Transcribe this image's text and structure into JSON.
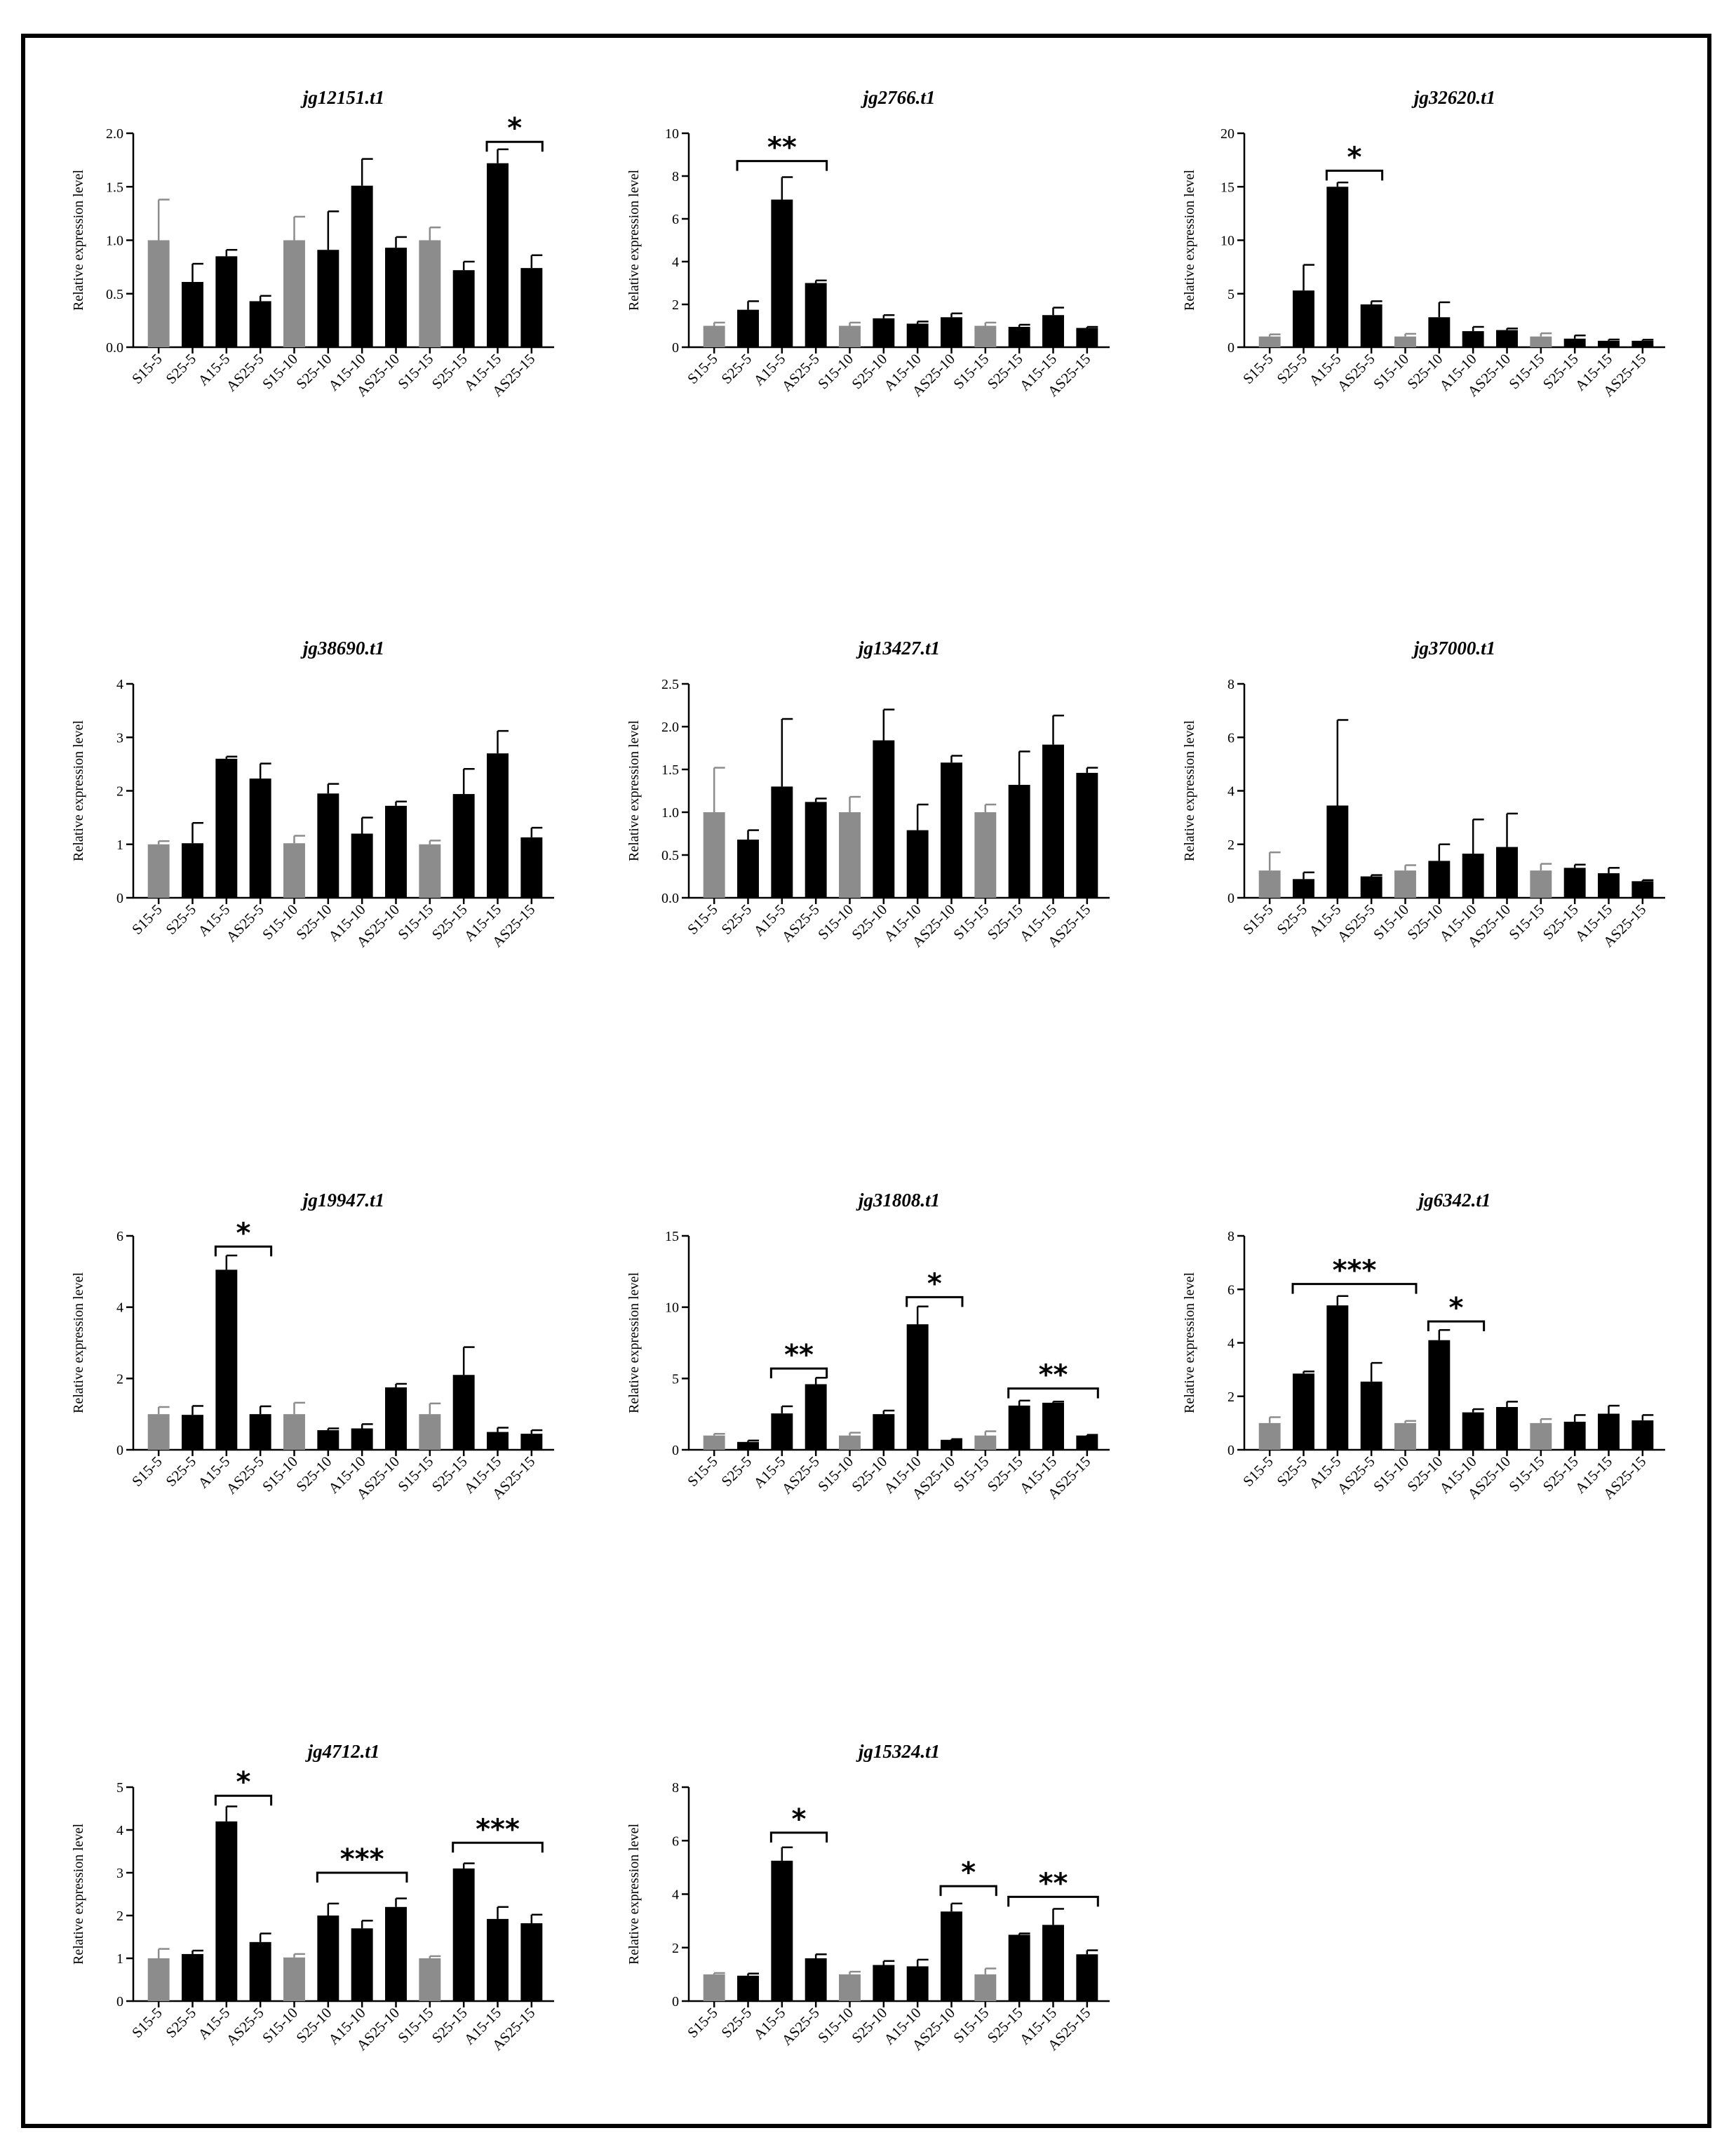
{
  "colors": {
    "control": "#8c8c8c",
    "treatment": "#000000",
    "frame": "#000000"
  },
  "chart_data": [
    {
      "type": "bar",
      "title": "jg12151.t1",
      "ylabel": "Relative expression level",
      "ylim": [
        0,
        2.0
      ],
      "yticks": [
        "0.0",
        "0.5",
        "1.0",
        "1.5",
        "2.0"
      ],
      "categories": [
        "S15-5",
        "S25-5",
        "A15-5",
        "AS25-5",
        "S15-10",
        "S25-10",
        "A15-10",
        "AS25-10",
        "S15-15",
        "S25-15",
        "A15-15",
        "AS25-15"
      ],
      "values": [
        1.0,
        0.61,
        0.85,
        0.43,
        1.0,
        0.91,
        1.51,
        0.93,
        1.0,
        0.72,
        1.72,
        0.74
      ],
      "errors": [
        0.38,
        0.17,
        0.06,
        0.05,
        0.22,
        0.36,
        0.25,
        0.1,
        0.12,
        0.08,
        0.13,
        0.12
      ],
      "control_indices": [
        0,
        4,
        8
      ],
      "annotations": [
        {
          "text": "*",
          "from": 10,
          "to": 11,
          "y": 1.92
        }
      ]
    },
    {
      "type": "bar",
      "title": "jg2766.t1",
      "ylabel": "Relative expression level",
      "ylim": [
        0,
        10
      ],
      "yticks": [
        "0",
        "2",
        "4",
        "6",
        "8",
        "10"
      ],
      "categories": [
        "S15-5",
        "S25-5",
        "A15-5",
        "AS25-5",
        "S15-10",
        "S25-10",
        "A15-10",
        "AS25-10",
        "S15-15",
        "S25-15",
        "A15-15",
        "AS25-15"
      ],
      "values": [
        1.0,
        1.75,
        6.9,
        3.0,
        1.0,
        1.35,
        1.1,
        1.4,
        1.0,
        0.95,
        1.5,
        0.9
      ],
      "errors": [
        0.15,
        0.4,
        1.05,
        0.12,
        0.15,
        0.15,
        0.1,
        0.18,
        0.15,
        0.1,
        0.35,
        0.05
      ],
      "control_indices": [
        0,
        4,
        8
      ],
      "annotations": [
        {
          "text": "**",
          "from": 1,
          "to": 3,
          "y": 8.7
        }
      ]
    },
    {
      "type": "bar",
      "title": "jg32620.t1",
      "ylabel": "Relative expression level",
      "ylim": [
        0,
        20
      ],
      "yticks": [
        "0",
        "5",
        "10",
        "15",
        "20"
      ],
      "categories": [
        "S15-5",
        "S25-5",
        "A15-5",
        "AS25-5",
        "S15-10",
        "S25-10",
        "A15-10",
        "AS25-10",
        "S15-15",
        "S25-15",
        "A15-15",
        "AS25-15"
      ],
      "values": [
        1.0,
        5.3,
        15.0,
        4.0,
        1.0,
        2.8,
        1.5,
        1.6,
        1.0,
        0.8,
        0.6,
        0.6
      ],
      "errors": [
        0.2,
        2.4,
        0.4,
        0.3,
        0.25,
        1.4,
        0.4,
        0.15,
        0.3,
        0.3,
        0.12,
        0.1
      ],
      "control_indices": [
        0,
        4,
        8
      ],
      "annotations": [
        {
          "text": "*",
          "from": 2,
          "to": 3,
          "y": 16.5
        }
      ]
    },
    {
      "type": "bar",
      "title": "jg38690.t1",
      "ylabel": "Relative expression level",
      "ylim": [
        0,
        4
      ],
      "yticks": [
        "0",
        "1",
        "2",
        "3",
        "4"
      ],
      "categories": [
        "S15-5",
        "S25-5",
        "A15-5",
        "AS25-5",
        "S15-10",
        "S25-10",
        "A15-10",
        "AS25-10",
        "S15-15",
        "S25-15",
        "A15-15",
        "AS25-15"
      ],
      "values": [
        1.0,
        1.02,
        2.6,
        2.23,
        1.02,
        1.95,
        1.2,
        1.72,
        1.0,
        1.94,
        2.7,
        1.13
      ],
      "errors": [
        0.06,
        0.38,
        0.04,
        0.28,
        0.14,
        0.18,
        0.3,
        0.08,
        0.07,
        0.47,
        0.42,
        0.18
      ],
      "control_indices": [
        0,
        4,
        8
      ],
      "annotations": []
    },
    {
      "type": "bar",
      "title": "jg13427.t1",
      "ylabel": "Relative expression level",
      "ylim": [
        0,
        2.5
      ],
      "yticks": [
        "0.0",
        "0.5",
        "1.0",
        "1.5",
        "2.0",
        "2.5"
      ],
      "categories": [
        "S15-5",
        "S25-5",
        "A15-5",
        "AS25-5",
        "S15-10",
        "S25-10",
        "A15-10",
        "AS25-10",
        "S15-15",
        "S25-15",
        "A15-15",
        "AS25-15"
      ],
      "values": [
        1.0,
        0.68,
        1.3,
        1.12,
        1.0,
        1.84,
        0.79,
        1.58,
        1.0,
        1.32,
        1.79,
        1.46
      ],
      "errors": [
        0.52,
        0.11,
        0.79,
        0.04,
        0.18,
        0.36,
        0.3,
        0.08,
        0.09,
        0.39,
        0.34,
        0.06
      ],
      "control_indices": [
        0,
        4,
        8
      ],
      "annotations": []
    },
    {
      "type": "bar",
      "title": "jg37000.t1",
      "ylabel": "Relative expression level",
      "ylim": [
        0,
        8
      ],
      "yticks": [
        "0",
        "2",
        "4",
        "6",
        "8"
      ],
      "categories": [
        "S15-5",
        "S25-5",
        "A15-5",
        "AS25-5",
        "S15-10",
        "S25-10",
        "A15-10",
        "AS25-10",
        "S15-15",
        "S25-15",
        "A15-15",
        "AS25-15"
      ],
      "values": [
        1.02,
        0.7,
        3.45,
        0.8,
        1.02,
        1.38,
        1.65,
        1.9,
        1.02,
        1.12,
        0.92,
        0.62
      ],
      "errors": [
        0.68,
        0.25,
        3.2,
        0.05,
        0.2,
        0.62,
        1.28,
        1.25,
        0.25,
        0.12,
        0.2,
        0.04
      ],
      "control_indices": [
        0,
        4,
        8
      ],
      "annotations": []
    },
    {
      "type": "bar",
      "title": "jg19947.t1",
      "ylabel": "Relative expression level",
      "ylim": [
        0,
        6
      ],
      "yticks": [
        "0",
        "2",
        "4",
        "6"
      ],
      "categories": [
        "S15-5",
        "S25-5",
        "A15-5",
        "AS25-5",
        "S15-10",
        "S25-10",
        "A15-10",
        "AS25-10",
        "S15-15",
        "S25-15",
        "A15-15",
        "AS25-15"
      ],
      "values": [
        1.0,
        0.98,
        5.05,
        1.0,
        1.0,
        0.55,
        0.6,
        1.75,
        1.0,
        2.1,
        0.5,
        0.45
      ],
      "errors": [
        0.2,
        0.25,
        0.4,
        0.22,
        0.32,
        0.05,
        0.12,
        0.1,
        0.3,
        0.78,
        0.12,
        0.1
      ],
      "control_indices": [
        0,
        4,
        8
      ],
      "annotations": [
        {
          "text": "*",
          "from": 2,
          "to": 3,
          "y": 5.7
        }
      ]
    },
    {
      "type": "bar",
      "title": "jg31808.t1",
      "ylabel": "Relative expression level",
      "ylim": [
        0,
        15
      ],
      "yticks": [
        "0",
        "5",
        "10",
        "15"
      ],
      "categories": [
        "S15-5",
        "S25-5",
        "A15-5",
        "AS25-5",
        "S15-10",
        "S25-10",
        "A15-10",
        "AS25-10",
        "S15-15",
        "S25-15",
        "A15-15",
        "AS25-15"
      ],
      "values": [
        1.0,
        0.55,
        2.55,
        4.6,
        1.0,
        2.5,
        8.8,
        0.7,
        1.0,
        3.1,
        3.3,
        1.0
      ],
      "errors": [
        0.12,
        0.1,
        0.5,
        0.45,
        0.2,
        0.25,
        1.25,
        0.05,
        0.3,
        0.35,
        0.08,
        0.05
      ],
      "control_indices": [
        0,
        4,
        8
      ],
      "annotations": [
        {
          "text": "**",
          "from": 2,
          "to": 3,
          "y": 5.7
        },
        {
          "text": "*",
          "from": 6,
          "to": 7,
          "y": 10.7
        },
        {
          "text": "**",
          "from": 9,
          "to": 11,
          "y": 4.3
        }
      ]
    },
    {
      "type": "bar",
      "title": "jg6342.t1",
      "ylabel": "Relative expression level",
      "ylim": [
        0,
        8
      ],
      "yticks": [
        "0",
        "2",
        "4",
        "6",
        "8"
      ],
      "categories": [
        "S15-5",
        "S25-5",
        "A15-5",
        "AS25-5",
        "S15-10",
        "S25-10",
        "A15-10",
        "AS25-10",
        "S15-15",
        "S25-15",
        "A15-15",
        "AS25-15"
      ],
      "values": [
        1.0,
        2.85,
        5.4,
        2.55,
        1.0,
        4.1,
        1.4,
        1.6,
        1.0,
        1.05,
        1.35,
        1.1
      ],
      "errors": [
        0.22,
        0.08,
        0.35,
        0.7,
        0.08,
        0.38,
        0.12,
        0.2,
        0.15,
        0.25,
        0.3,
        0.2
      ],
      "control_indices": [
        0,
        4,
        8
      ],
      "annotations": [
        {
          "text": "***",
          "from": 1,
          "to": 4,
          "y": 6.2
        },
        {
          "text": "*",
          "from": 5,
          "to": 6,
          "y": 4.8
        }
      ]
    },
    {
      "type": "bar",
      "title": "jg4712.t1",
      "ylabel": "Relative expression level",
      "ylim": [
        0,
        5
      ],
      "yticks": [
        "0",
        "1",
        "2",
        "3",
        "4",
        "5"
      ],
      "categories": [
        "S15-5",
        "S25-5",
        "A15-5",
        "AS25-5",
        "S15-10",
        "S25-10",
        "A15-10",
        "AS25-10",
        "S15-15",
        "S25-15",
        "A15-15",
        "AS25-15"
      ],
      "values": [
        1.0,
        1.1,
        4.2,
        1.38,
        1.02,
        2.0,
        1.7,
        2.2,
        1.0,
        3.1,
        1.92,
        1.82
      ],
      "errors": [
        0.22,
        0.08,
        0.35,
        0.2,
        0.08,
        0.28,
        0.18,
        0.2,
        0.05,
        0.12,
        0.28,
        0.2
      ],
      "control_indices": [
        0,
        4,
        8
      ],
      "annotations": [
        {
          "text": "*",
          "from": 2,
          "to": 3,
          "y": 4.8
        },
        {
          "text": "***",
          "from": 5,
          "to": 7,
          "y": 3.0
        },
        {
          "text": "***",
          "from": 9,
          "to": 11,
          "y": 3.7
        }
      ]
    },
    {
      "type": "bar",
      "title": "jg15324.t1",
      "ylabel": "Relative expression level",
      "ylim": [
        0,
        8
      ],
      "yticks": [
        "0",
        "2",
        "4",
        "6",
        "8"
      ],
      "categories": [
        "S15-5",
        "S25-5",
        "A15-5",
        "AS25-5",
        "S15-10",
        "S25-10",
        "A15-10",
        "AS25-10",
        "S15-15",
        "S25-15",
        "A15-15",
        "AS25-15"
      ],
      "values": [
        1.0,
        0.95,
        5.25,
        1.6,
        1.0,
        1.35,
        1.3,
        3.35,
        1.0,
        2.48,
        2.85,
        1.75
      ],
      "errors": [
        0.05,
        0.08,
        0.5,
        0.15,
        0.1,
        0.15,
        0.25,
        0.3,
        0.22,
        0.05,
        0.6,
        0.15
      ],
      "control_indices": [
        0,
        4,
        8
      ],
      "annotations": [
        {
          "text": "*",
          "from": 2,
          "to": 3,
          "y": 6.3
        },
        {
          "text": "*",
          "from": 7,
          "to": 8,
          "y": 4.3
        },
        {
          "text": "**",
          "from": 9,
          "to": 11,
          "y": 3.9
        }
      ]
    }
  ]
}
